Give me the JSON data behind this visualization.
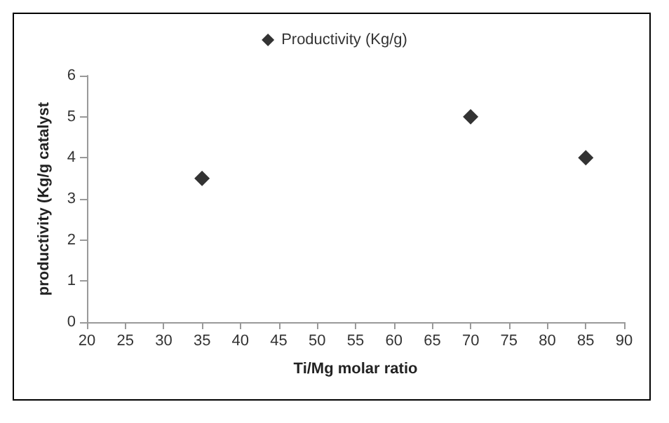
{
  "chart_data": {
    "type": "scatter",
    "xlabel": "Ti/Mg molar ratio",
    "ylabel": "productivity (Kg/g catalyst",
    "x": [
      35,
      70,
      85
    ],
    "series": [
      {
        "name": "Productivity (Kg/g)",
        "color": "#000000",
        "values": [
          3.5,
          5,
          4
        ]
      }
    ],
    "xlim": [
      20,
      90
    ],
    "xticks": [
      20,
      25,
      30,
      35,
      40,
      45,
      50,
      55,
      60,
      65,
      70,
      75,
      80,
      85,
      90
    ],
    "ylim": [
      0,
      6
    ],
    "yticks": [
      0,
      1,
      2,
      3,
      4,
      5,
      6
    ],
    "grid": false,
    "legend": "top",
    "marker": "diamond"
  }
}
